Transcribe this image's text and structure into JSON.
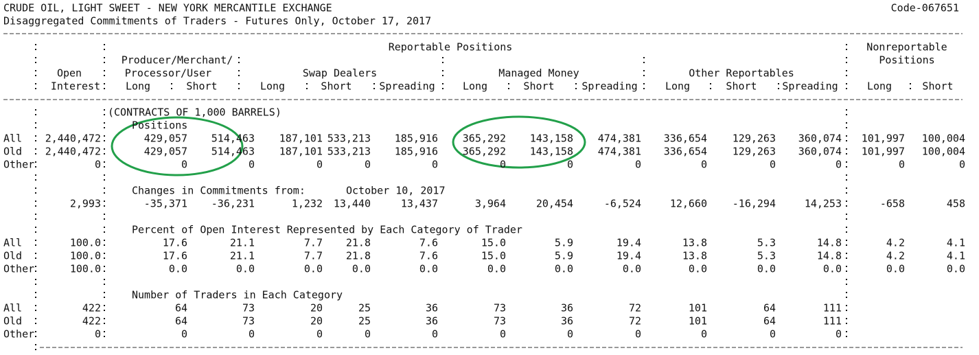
{
  "header": {
    "title": "CRUDE OIL, LIGHT SWEET - NEW YORK MERCANTILE EXCHANGE",
    "code": "Code-067651",
    "subtitle": "Disaggregated Commitments of Traders - Futures Only, October 17, 2017"
  },
  "columns": {
    "reportable": "Reportable Positions",
    "open_interest": [
      "Open",
      "Interest"
    ],
    "producer": [
      "Producer/Merchant/",
      "Processor/User"
    ],
    "swap": "Swap Dealers",
    "managed": "Managed Money",
    "other": "Other Reportables",
    "nonreportable": [
      "Nonreportable",
      "Positions"
    ],
    "subheads": [
      "Long",
      "Short",
      "Long",
      "Short",
      "Spreading",
      "Long",
      "Short",
      "Spreading",
      "Long",
      "Short",
      "Spreading",
      "Long",
      "Short"
    ]
  },
  "units": "(CONTRACTS OF 1,000 BARRELS)",
  "sections": [
    {
      "title": "Positions",
      "rows": [
        {
          "label": "All",
          "values": [
            "2,440,472",
            "429,057",
            "514,463",
            "187,101",
            "533,213",
            "185,916",
            "365,292",
            "143,158",
            "474,381",
            "336,654",
            "129,263",
            "360,074",
            "101,997",
            "100,004"
          ]
        },
        {
          "label": "Old",
          "values": [
            "2,440,472",
            "429,057",
            "514,463",
            "187,101",
            "533,213",
            "185,916",
            "365,292",
            "143,158",
            "474,381",
            "336,654",
            "129,263",
            "360,074",
            "101,997",
            "100,004"
          ]
        },
        {
          "label": "Other",
          "values": [
            "0",
            "0",
            "0",
            "0",
            "0",
            "0",
            "0",
            "0",
            "0",
            "0",
            "0",
            "0",
            "0",
            "0"
          ]
        }
      ]
    },
    {
      "title": "Changes in Commitments from:",
      "date": "October 10, 2017",
      "rows": [
        {
          "values": [
            "2,993",
            "-35,371",
            "-36,231",
            "1,232",
            "13,440",
            "13,437",
            "3,964",
            "20,454",
            "-6,524",
            "12,660",
            "-16,294",
            "14,253",
            "-658",
            "458"
          ]
        }
      ]
    },
    {
      "title": "Percent of Open Interest Represented by Each Category of Trader",
      "rows": [
        {
          "label": "All",
          "values": [
            "100.0",
            "17.6",
            "21.1",
            "7.7",
            "21.8",
            "7.6",
            "15.0",
            "5.9",
            "19.4",
            "13.8",
            "5.3",
            "14.8",
            "4.2",
            "4.1"
          ]
        },
        {
          "label": "Old",
          "values": [
            "100.0",
            "17.6",
            "21.1",
            "7.7",
            "21.8",
            "7.6",
            "15.0",
            "5.9",
            "19.4",
            "13.8",
            "5.3",
            "14.8",
            "4.2",
            "4.1"
          ]
        },
        {
          "label": "Other",
          "values": [
            "100.0",
            "0.0",
            "0.0",
            "0.0",
            "0.0",
            "0.0",
            "0.0",
            "0.0",
            "0.0",
            "0.0",
            "0.0",
            "0.0",
            "0.0",
            "0.0"
          ]
        }
      ]
    },
    {
      "title": "Number of Traders in Each Category",
      "rows": [
        {
          "label": "All",
          "values": [
            "422",
            "64",
            "73",
            "20",
            "25",
            "36",
            "73",
            "36",
            "72",
            "101",
            "64",
            "111"
          ]
        },
        {
          "label": "Old",
          "values": [
            "422",
            "64",
            "73",
            "20",
            "25",
            "36",
            "73",
            "36",
            "72",
            "101",
            "64",
            "111"
          ]
        },
        {
          "label": "Other",
          "values": [
            "0",
            "0",
            "0",
            "0",
            "0",
            "0",
            "0",
            "0",
            "0",
            "0",
            "0",
            "0"
          ]
        }
      ]
    }
  ]
}
